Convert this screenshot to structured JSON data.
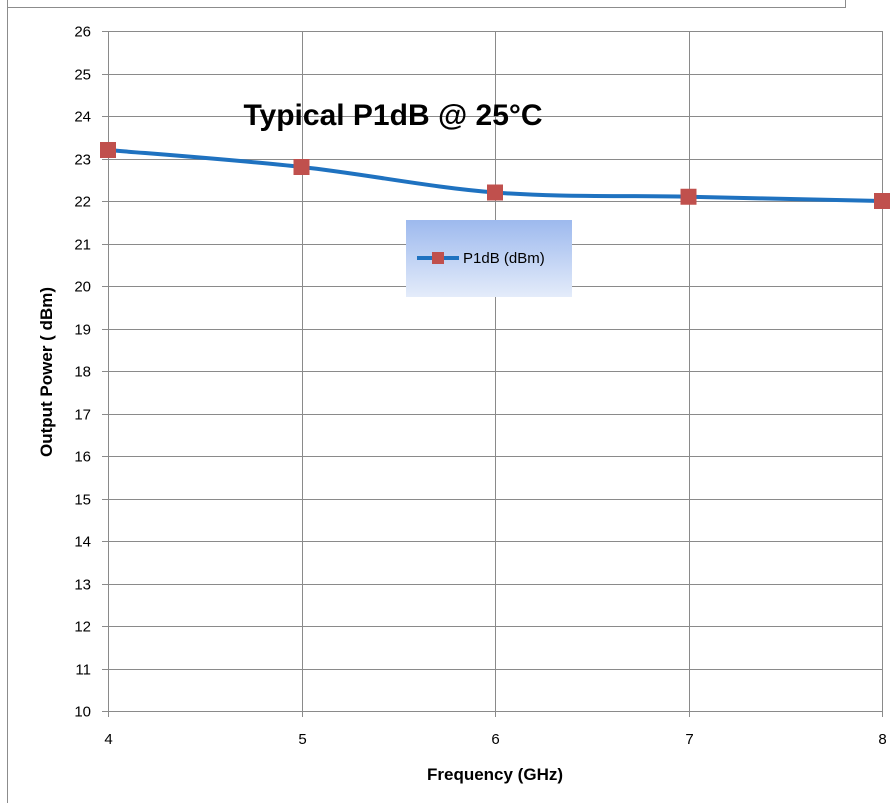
{
  "chart_data": {
    "type": "line",
    "title": "Typical P1dB @ 25°C",
    "xlabel": "Frequency (GHz)",
    "ylabel": "Output Power ( dBm)",
    "x": [
      4,
      5,
      6,
      7,
      8
    ],
    "xlim": [
      4,
      8
    ],
    "ylim": [
      10,
      26
    ],
    "yticks": [
      10,
      11,
      12,
      13,
      14,
      15,
      16,
      17,
      18,
      19,
      20,
      21,
      22,
      23,
      24,
      25,
      26
    ],
    "xticks": [
      4,
      5,
      6,
      7,
      8
    ],
    "grid": true,
    "smooth": true,
    "legend_position": "center",
    "series": [
      {
        "name": "P1dB (dBm)",
        "values": [
          23.2,
          22.8,
          22.2,
          22.1,
          22.0
        ],
        "line_color": "#1F72C0",
        "marker_color": "#C0504D",
        "marker": "square"
      }
    ]
  }
}
